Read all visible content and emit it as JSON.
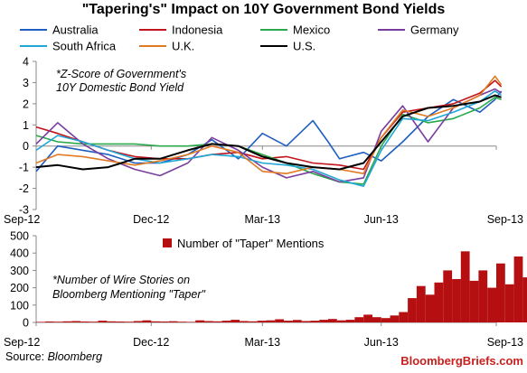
{
  "title": "\"Tapering's\" Impact on 10Y Government Bond Yields",
  "source_label": "Source:",
  "source_name": "Bloomberg",
  "brand": "BloombergBriefs.com",
  "colors": {
    "Australia": "#1f5fbf",
    "Indonesia": "#c0151b",
    "Mexico": "#2aa84a",
    "Germany": "#7a3d9e",
    "South Africa": "#22a6d6",
    "U.K.": "#e07b24",
    "U.S.": "#000000",
    "bars": "#b50f12"
  },
  "chart_data": [
    {
      "type": "line",
      "title": "",
      "note_lines": [
        "*Z-Score of Government's",
        "10Y Domestic Bond Yield"
      ],
      "x_tick_labels": [
        "Sep-12",
        "Dec-12",
        "Mar-13",
        "Jun-13",
        "Sep-13"
      ],
      "x_tick_dates": [
        "2012-09-03",
        "2012-12-03",
        "2013-03-01",
        "2013-06-03",
        "2013-09-02"
      ],
      "ylim": [
        -3,
        4
      ],
      "y_ticks": [
        -3,
        -2,
        -1,
        0,
        1,
        2,
        3,
        4
      ],
      "grid": false,
      "legend_position": "top",
      "series": [
        {
          "name": "Australia",
          "dates": [
            "2012-09-03",
            "2012-09-20",
            "2012-10-10",
            "2012-10-30",
            "2012-11-20",
            "2012-12-10",
            "2013-01-01",
            "2013-01-20",
            "2013-02-10",
            "2013-03-01",
            "2013-03-20",
            "2013-04-10",
            "2013-04-22",
            "2013-05-01",
            "2013-05-20",
            "2013-06-03",
            "2013-06-20",
            "2013-07-10",
            "2013-07-30",
            "2013-08-20",
            "2013-09-01",
            "2013-09-06"
          ],
          "values": [
            -1.2,
            0.0,
            -0.2,
            -0.4,
            -0.8,
            -0.8,
            -0.4,
            0.3,
            -0.6,
            0.6,
            0.0,
            1.2,
            0.2,
            -0.6,
            -0.3,
            -0.7,
            0.2,
            1.4,
            2.2,
            1.6,
            2.2,
            2.6
          ]
        },
        {
          "name": "Indonesia",
          "dates": [
            "2012-09-03",
            "2012-09-20",
            "2012-10-10",
            "2012-10-30",
            "2012-11-20",
            "2012-12-10",
            "2013-01-01",
            "2013-01-20",
            "2013-02-10",
            "2013-03-01",
            "2013-03-20",
            "2013-04-10",
            "2013-05-01",
            "2013-05-20",
            "2013-06-03",
            "2013-06-20",
            "2013-07-10",
            "2013-07-30",
            "2013-08-20",
            "2013-09-01",
            "2013-09-06"
          ],
          "values": [
            0.9,
            0.6,
            0.2,
            -0.2,
            -0.5,
            -0.6,
            -0.6,
            -0.4,
            -0.3,
            -0.6,
            -0.5,
            -0.8,
            -0.9,
            -1.1,
            0.4,
            1.6,
            1.8,
            2.0,
            2.5,
            3.1,
            2.8
          ]
        },
        {
          "name": "Mexico",
          "dates": [
            "2012-09-03",
            "2012-09-20",
            "2012-10-10",
            "2012-10-30",
            "2012-11-20",
            "2012-12-10",
            "2013-01-01",
            "2013-01-20",
            "2013-02-10",
            "2013-03-01",
            "2013-03-20",
            "2013-04-10",
            "2013-05-01",
            "2013-05-20",
            "2013-06-03",
            "2013-06-20",
            "2013-07-10",
            "2013-07-30",
            "2013-08-20",
            "2013-09-01",
            "2013-09-06"
          ],
          "values": [
            0.5,
            0.2,
            0.1,
            0.1,
            0.1,
            0.0,
            0.0,
            0.1,
            0.0,
            -0.4,
            -0.8,
            -1.3,
            -1.7,
            -1.8,
            0.0,
            1.5,
            1.1,
            1.3,
            1.8,
            2.3,
            2.2
          ]
        },
        {
          "name": "Germany",
          "dates": [
            "2012-09-03",
            "2012-09-20",
            "2012-10-10",
            "2012-10-30",
            "2012-11-20",
            "2012-12-10",
            "2013-01-01",
            "2013-01-20",
            "2013-02-10",
            "2013-03-01",
            "2013-03-20",
            "2013-04-10",
            "2013-05-01",
            "2013-05-20",
            "2013-06-03",
            "2013-06-20",
            "2013-07-10",
            "2013-07-30",
            "2013-08-20",
            "2013-09-01",
            "2013-09-06"
          ],
          "values": [
            0.1,
            1.1,
            0.1,
            -0.6,
            -1.1,
            -1.4,
            -0.8,
            0.4,
            -0.2,
            -1.0,
            -1.5,
            -1.2,
            -1.7,
            -1.5,
            0.7,
            1.9,
            0.2,
            1.8,
            2.4,
            2.7,
            2.5
          ]
        },
        {
          "name": "South Africa",
          "dates": [
            "2012-09-03",
            "2012-09-20",
            "2012-10-10",
            "2012-10-30",
            "2012-11-20",
            "2012-12-10",
            "2013-01-01",
            "2013-01-20",
            "2013-02-10",
            "2013-03-01",
            "2013-03-20",
            "2013-04-10",
            "2013-05-01",
            "2013-05-20",
            "2013-06-03",
            "2013-06-20",
            "2013-07-10",
            "2013-07-30",
            "2013-08-20",
            "2013-09-01",
            "2013-09-06"
          ],
          "values": [
            -0.2,
            0.5,
            0.2,
            -0.2,
            -0.6,
            -0.8,
            -0.6,
            -0.4,
            -0.5,
            -0.8,
            -0.9,
            -1.1,
            -1.6,
            -1.9,
            -0.2,
            1.3,
            1.2,
            1.6,
            2.1,
            2.6,
            2.4
          ]
        },
        {
          "name": "U.K.",
          "dates": [
            "2012-09-03",
            "2012-09-20",
            "2012-10-10",
            "2012-10-30",
            "2012-11-20",
            "2012-12-10",
            "2013-01-01",
            "2013-01-20",
            "2013-02-10",
            "2013-03-01",
            "2013-03-20",
            "2013-04-10",
            "2013-05-01",
            "2013-05-20",
            "2013-06-03",
            "2013-06-20",
            "2013-07-10",
            "2013-07-30",
            "2013-08-20",
            "2013-09-01",
            "2013-09-06"
          ],
          "values": [
            -0.8,
            -0.4,
            -0.5,
            -0.7,
            -0.9,
            -0.7,
            -0.4,
            0.0,
            -0.3,
            -1.2,
            -1.3,
            -1.0,
            -1.1,
            -1.3,
            0.4,
            1.7,
            1.4,
            1.8,
            2.4,
            3.3,
            2.9
          ]
        },
        {
          "name": "U.S.",
          "dates": [
            "2012-09-03",
            "2012-09-20",
            "2012-10-10",
            "2012-10-30",
            "2012-11-20",
            "2012-12-10",
            "2013-01-01",
            "2013-01-20",
            "2013-02-10",
            "2013-03-01",
            "2013-03-20",
            "2013-04-10",
            "2013-05-01",
            "2013-05-20",
            "2013-06-03",
            "2013-06-20",
            "2013-07-10",
            "2013-07-30",
            "2013-08-20",
            "2013-09-01",
            "2013-09-06"
          ],
          "values": [
            -1.0,
            -0.9,
            -1.1,
            -1.0,
            -0.6,
            -0.6,
            -0.2,
            0.1,
            0.0,
            -0.5,
            -0.8,
            -1.0,
            -1.1,
            -0.8,
            0.2,
            1.4,
            1.8,
            1.9,
            2.1,
            2.4,
            2.3
          ]
        }
      ]
    },
    {
      "type": "bar",
      "title": "",
      "note_lines": [
        "*Number of Wire Stories on",
        "Bloomberg Mentioning \"Taper\""
      ],
      "x_tick_labels": [
        "Sep-12",
        "Dec-12",
        "Mar-13",
        "Jun-13",
        "Sep-13"
      ],
      "x_tick_dates": [
        "2012-09-03",
        "2012-12-03",
        "2013-03-01",
        "2013-06-03",
        "2013-09-02"
      ],
      "ylim": [
        0,
        500
      ],
      "y_ticks": [
        0,
        100,
        200,
        300,
        400,
        500
      ],
      "grid": false,
      "legend_position": "top",
      "series": [
        {
          "name": "Number of \"Taper\" Mentions",
          "start_date": "2012-09-03",
          "week_values": [
            3,
            5,
            4,
            6,
            8,
            5,
            4,
            10,
            6,
            5,
            4,
            8,
            12,
            6,
            5,
            7,
            4,
            3,
            12,
            8,
            6,
            10,
            15,
            8,
            6,
            10,
            12,
            18,
            10,
            14,
            8,
            10,
            15,
            20,
            12,
            15,
            30,
            45,
            30,
            25,
            40,
            60,
            140,
            210,
            160,
            230,
            300,
            250,
            410,
            240,
            300,
            200,
            340,
            220,
            380,
            260,
            310,
            180,
            430,
            230,
            250
          ]
        }
      ]
    }
  ]
}
